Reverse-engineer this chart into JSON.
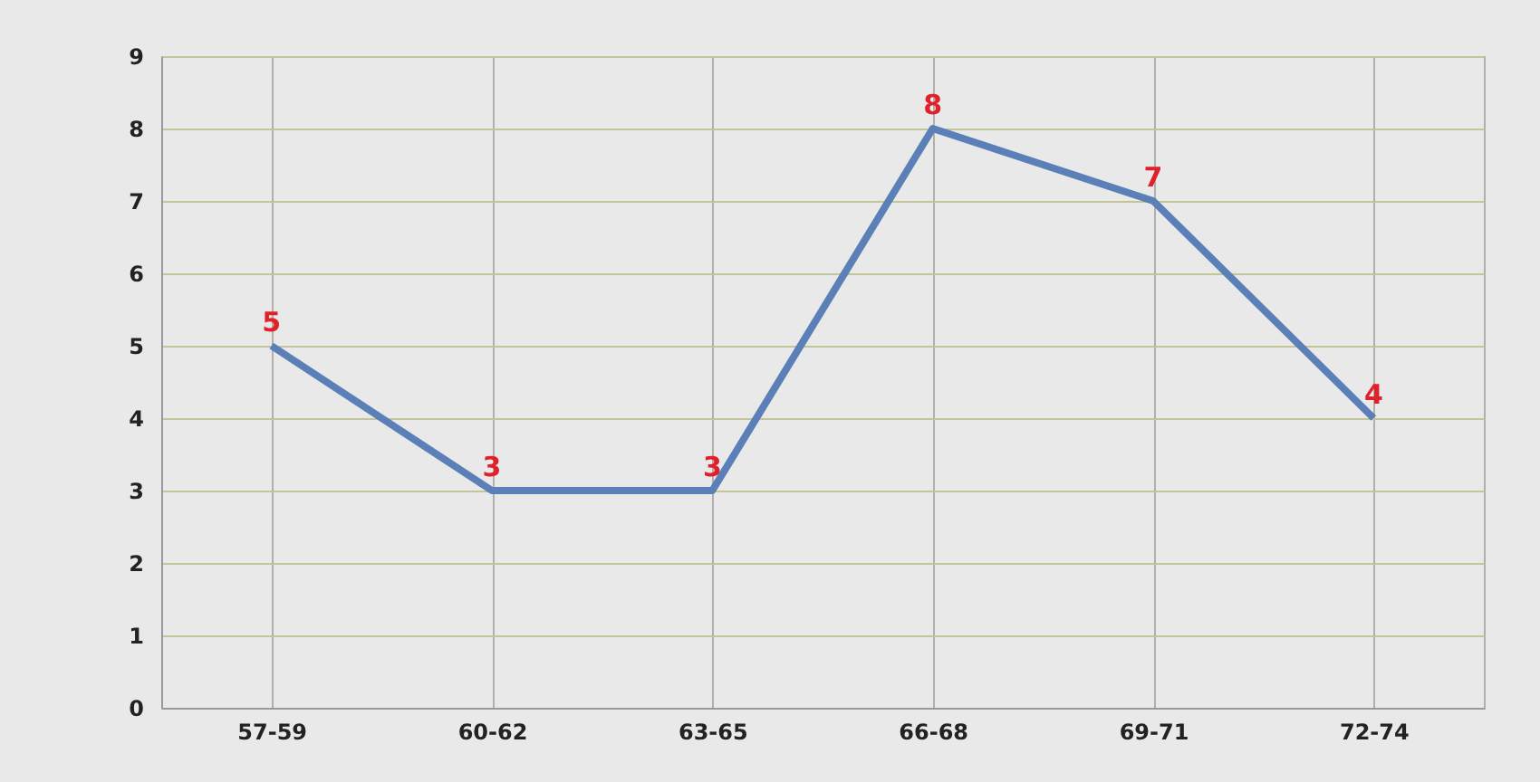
{
  "chart_data": {
    "type": "line",
    "categories": [
      "57-59",
      "60-62",
      "63-65",
      "66-68",
      "69-71",
      "72-74"
    ],
    "series": [
      {
        "color": "#5b80b8",
        "values": [
          5,
          3,
          3,
          8,
          7,
          4
        ]
      }
    ],
    "ylim": [
      0,
      9
    ],
    "yticks": [
      0,
      1,
      2,
      3,
      4,
      5,
      6,
      7,
      8,
      9
    ],
    "grid": true,
    "data_labels": true,
    "marker": "none"
  }
}
